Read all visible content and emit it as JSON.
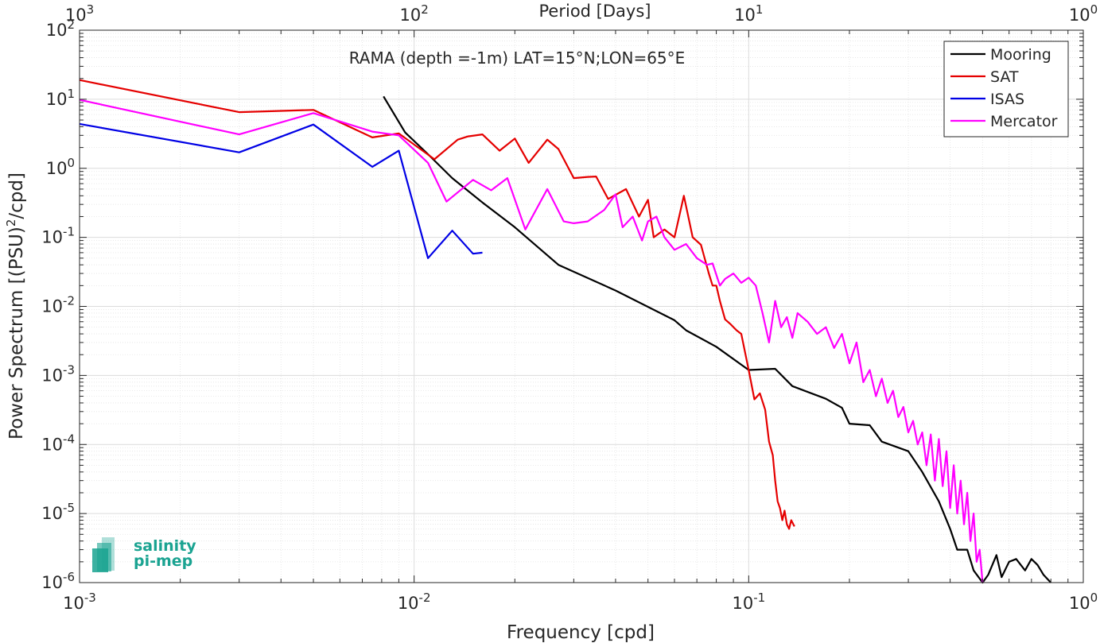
{
  "chart_data": {
    "type": "line",
    "title": "RAMA (depth =-1m) LAT=15°N;LON=65°E",
    "xlabel": "Frequency [cpd]",
    "ylabel": "Power Spectrum [(PSU)²/cpd]",
    "ylabel_parts": {
      "main": "Power Spectrum [(PSU)",
      "sup": "2",
      "tail": "/cpd]"
    },
    "x2label": "Period [Days]",
    "xscale": "log",
    "yscale": "log",
    "xlim": [
      0.001,
      1
    ],
    "ylim": [
      1e-06,
      100
    ],
    "grid": true,
    "legend_position": "top-right",
    "x_ticks": [
      {
        "value": 0.001,
        "base": "10",
        "exp": "-3"
      },
      {
        "value": 0.01,
        "base": "10",
        "exp": "-2"
      },
      {
        "value": 0.1,
        "base": "10",
        "exp": "-1"
      },
      {
        "value": 1,
        "base": "10",
        "exp": "0"
      }
    ],
    "x2_ticks": [
      {
        "freq": 0.001,
        "base": "10",
        "exp": "3"
      },
      {
        "freq": 0.01,
        "base": "10",
        "exp": "2"
      },
      {
        "freq": 0.1,
        "base": "10",
        "exp": "1"
      },
      {
        "freq": 1,
        "base": "10",
        "exp": "0"
      }
    ],
    "y_ticks": [
      {
        "value": 1e-06,
        "base": "10",
        "exp": "-6"
      },
      {
        "value": 1e-05,
        "base": "10",
        "exp": "-5"
      },
      {
        "value": 0.0001,
        "base": "10",
        "exp": "-4"
      },
      {
        "value": 0.001,
        "base": "10",
        "exp": "-3"
      },
      {
        "value": 0.01,
        "base": "10",
        "exp": "-2"
      },
      {
        "value": 0.1,
        "base": "10",
        "exp": "-1"
      },
      {
        "value": 1,
        "base": "10",
        "exp": "0"
      },
      {
        "value": 10,
        "base": "10",
        "exp": "1"
      },
      {
        "value": 100,
        "base": "10",
        "exp": "2"
      }
    ],
    "series": [
      {
        "name": "Mooring",
        "color": "#000000",
        "points": [
          [
            0.0081,
            11
          ],
          [
            0.0094,
            3.3
          ],
          [
            0.011,
            1.6
          ],
          [
            0.013,
            0.72
          ],
          [
            0.016,
            0.32
          ],
          [
            0.02,
            0.14
          ],
          [
            0.027,
            0.04
          ],
          [
            0.04,
            0.017
          ],
          [
            0.06,
            0.0063
          ],
          [
            0.065,
            0.0045
          ],
          [
            0.08,
            0.0026
          ],
          [
            0.1,
            0.0012
          ],
          [
            0.12,
            0.00125
          ],
          [
            0.135,
            0.0007
          ],
          [
            0.17,
            0.00046
          ],
          [
            0.19,
            0.00034
          ],
          [
            0.2,
            0.0002
          ],
          [
            0.23,
            0.00019
          ],
          [
            0.25,
            0.00011
          ],
          [
            0.3,
            8e-05
          ],
          [
            0.33,
            4e-05
          ],
          [
            0.37,
            1.5e-05
          ],
          [
            0.4,
            6e-06
          ],
          [
            0.42,
            3e-06
          ],
          [
            0.45,
            3e-06
          ],
          [
            0.47,
            1.5e-06
          ],
          [
            0.5,
            1e-06
          ],
          [
            0.52,
            1.3e-06
          ],
          [
            0.55,
            2.5e-06
          ],
          [
            0.57,
            1.2e-06
          ],
          [
            0.6,
            2e-06
          ],
          [
            0.63,
            2.2e-06
          ],
          [
            0.67,
            1.5e-06
          ],
          [
            0.7,
            2.2e-06
          ],
          [
            0.73,
            1.8e-06
          ],
          [
            0.76,
            1.3e-06
          ],
          [
            0.8,
            1e-06
          ]
        ]
      },
      {
        "name": "SAT",
        "color": "#e50000",
        "points": [
          [
            0.001,
            19
          ],
          [
            0.003,
            6.5
          ],
          [
            0.005,
            7
          ],
          [
            0.0075,
            2.8
          ],
          [
            0.009,
            3.2
          ],
          [
            0.0115,
            1.35
          ],
          [
            0.0135,
            2.6
          ],
          [
            0.0145,
            2.9
          ],
          [
            0.016,
            3.1
          ],
          [
            0.018,
            1.8
          ],
          [
            0.02,
            2.7
          ],
          [
            0.022,
            1.2
          ],
          [
            0.025,
            2.6
          ],
          [
            0.027,
            1.9
          ],
          [
            0.03,
            0.72
          ],
          [
            0.033,
            0.75
          ],
          [
            0.035,
            0.76
          ],
          [
            0.038,
            0.36
          ],
          [
            0.043,
            0.5
          ],
          [
            0.047,
            0.2
          ],
          [
            0.05,
            0.35
          ],
          [
            0.052,
            0.1
          ],
          [
            0.056,
            0.13
          ],
          [
            0.06,
            0.1
          ],
          [
            0.064,
            0.4
          ],
          [
            0.068,
            0.1
          ],
          [
            0.072,
            0.078
          ],
          [
            0.076,
            0.03
          ],
          [
            0.078,
            0.02
          ],
          [
            0.08,
            0.02
          ],
          [
            0.082,
            0.012
          ],
          [
            0.085,
            0.0065
          ],
          [
            0.088,
            0.0056
          ],
          [
            0.092,
            0.0045
          ],
          [
            0.095,
            0.004
          ],
          [
            0.1,
            0.0012
          ],
          [
            0.104,
            0.00045
          ],
          [
            0.108,
            0.00055
          ],
          [
            0.112,
            0.00032
          ],
          [
            0.115,
            0.00011
          ],
          [
            0.118,
            7e-05
          ],
          [
            0.12,
            3e-05
          ],
          [
            0.122,
            1.5e-05
          ],
          [
            0.124,
            1.2e-05
          ],
          [
            0.126,
            8e-06
          ],
          [
            0.128,
            1.1e-05
          ],
          [
            0.13,
            7e-06
          ],
          [
            0.132,
            6e-06
          ],
          [
            0.134,
            8e-06
          ],
          [
            0.137,
            6.5e-06
          ]
        ]
      },
      {
        "name": "ISAS",
        "color": "#0000e5",
        "points": [
          [
            0.001,
            4.4
          ],
          [
            0.003,
            1.7
          ],
          [
            0.005,
            4.3
          ],
          [
            0.0075,
            1.05
          ],
          [
            0.009,
            1.8
          ],
          [
            0.011,
            0.05
          ],
          [
            0.013,
            0.125
          ],
          [
            0.015,
            0.058
          ],
          [
            0.016,
            0.06
          ]
        ]
      },
      {
        "name": "Mercator",
        "color": "#ff00ff",
        "points": [
          [
            0.001,
            9.8
          ],
          [
            0.003,
            3.1
          ],
          [
            0.005,
            6.3
          ],
          [
            0.0075,
            3.4
          ],
          [
            0.009,
            3
          ],
          [
            0.011,
            1.2
          ],
          [
            0.0125,
            0.33
          ],
          [
            0.015,
            0.68
          ],
          [
            0.017,
            0.48
          ],
          [
            0.019,
            0.72
          ],
          [
            0.0215,
            0.13
          ],
          [
            0.025,
            0.5
          ],
          [
            0.028,
            0.17
          ],
          [
            0.03,
            0.16
          ],
          [
            0.033,
            0.17
          ],
          [
            0.037,
            0.25
          ],
          [
            0.04,
            0.42
          ],
          [
            0.042,
            0.14
          ],
          [
            0.045,
            0.2
          ],
          [
            0.048,
            0.09
          ],
          [
            0.05,
            0.17
          ],
          [
            0.053,
            0.2
          ],
          [
            0.056,
            0.1
          ],
          [
            0.06,
            0.066
          ],
          [
            0.065,
            0.08
          ],
          [
            0.07,
            0.05
          ],
          [
            0.075,
            0.04
          ],
          [
            0.078,
            0.042
          ],
          [
            0.082,
            0.02
          ],
          [
            0.085,
            0.025
          ],
          [
            0.09,
            0.03
          ],
          [
            0.095,
            0.022
          ],
          [
            0.1,
            0.026
          ],
          [
            0.105,
            0.02
          ],
          [
            0.11,
            0.008
          ],
          [
            0.115,
            0.003
          ],
          [
            0.12,
            0.012
          ],
          [
            0.125,
            0.005
          ],
          [
            0.13,
            0.007
          ],
          [
            0.135,
            0.0035
          ],
          [
            0.14,
            0.008
          ],
          [
            0.15,
            0.006
          ],
          [
            0.16,
            0.004
          ],
          [
            0.17,
            0.005
          ],
          [
            0.18,
            0.0025
          ],
          [
            0.19,
            0.004
          ],
          [
            0.2,
            0.0015
          ],
          [
            0.21,
            0.003
          ],
          [
            0.22,
            0.0008
          ],
          [
            0.23,
            0.0012
          ],
          [
            0.24,
            0.0005
          ],
          [
            0.25,
            0.0009
          ],
          [
            0.26,
            0.0004
          ],
          [
            0.27,
            0.0006
          ],
          [
            0.28,
            0.00025
          ],
          [
            0.29,
            0.00035
          ],
          [
            0.3,
            0.00015
          ],
          [
            0.31,
            0.00022
          ],
          [
            0.32,
            0.0001
          ],
          [
            0.33,
            0.00015
          ],
          [
            0.34,
            5e-05
          ],
          [
            0.35,
            0.00014
          ],
          [
            0.36,
            3e-05
          ],
          [
            0.37,
            0.00012
          ],
          [
            0.38,
            2.5e-05
          ],
          [
            0.39,
            8e-05
          ],
          [
            0.4,
            1.2e-05
          ],
          [
            0.41,
            5e-05
          ],
          [
            0.42,
            1e-05
          ],
          [
            0.43,
            3e-05
          ],
          [
            0.44,
            7e-06
          ],
          [
            0.45,
            2e-05
          ],
          [
            0.46,
            4e-06
          ],
          [
            0.47,
            1e-05
          ],
          [
            0.48,
            2e-06
          ],
          [
            0.49,
            3e-06
          ],
          [
            0.5,
            1e-06
          ]
        ]
      }
    ]
  },
  "logo": {
    "line1": "salinity",
    "line2": "pi-mep",
    "color": "#1aa391"
  }
}
